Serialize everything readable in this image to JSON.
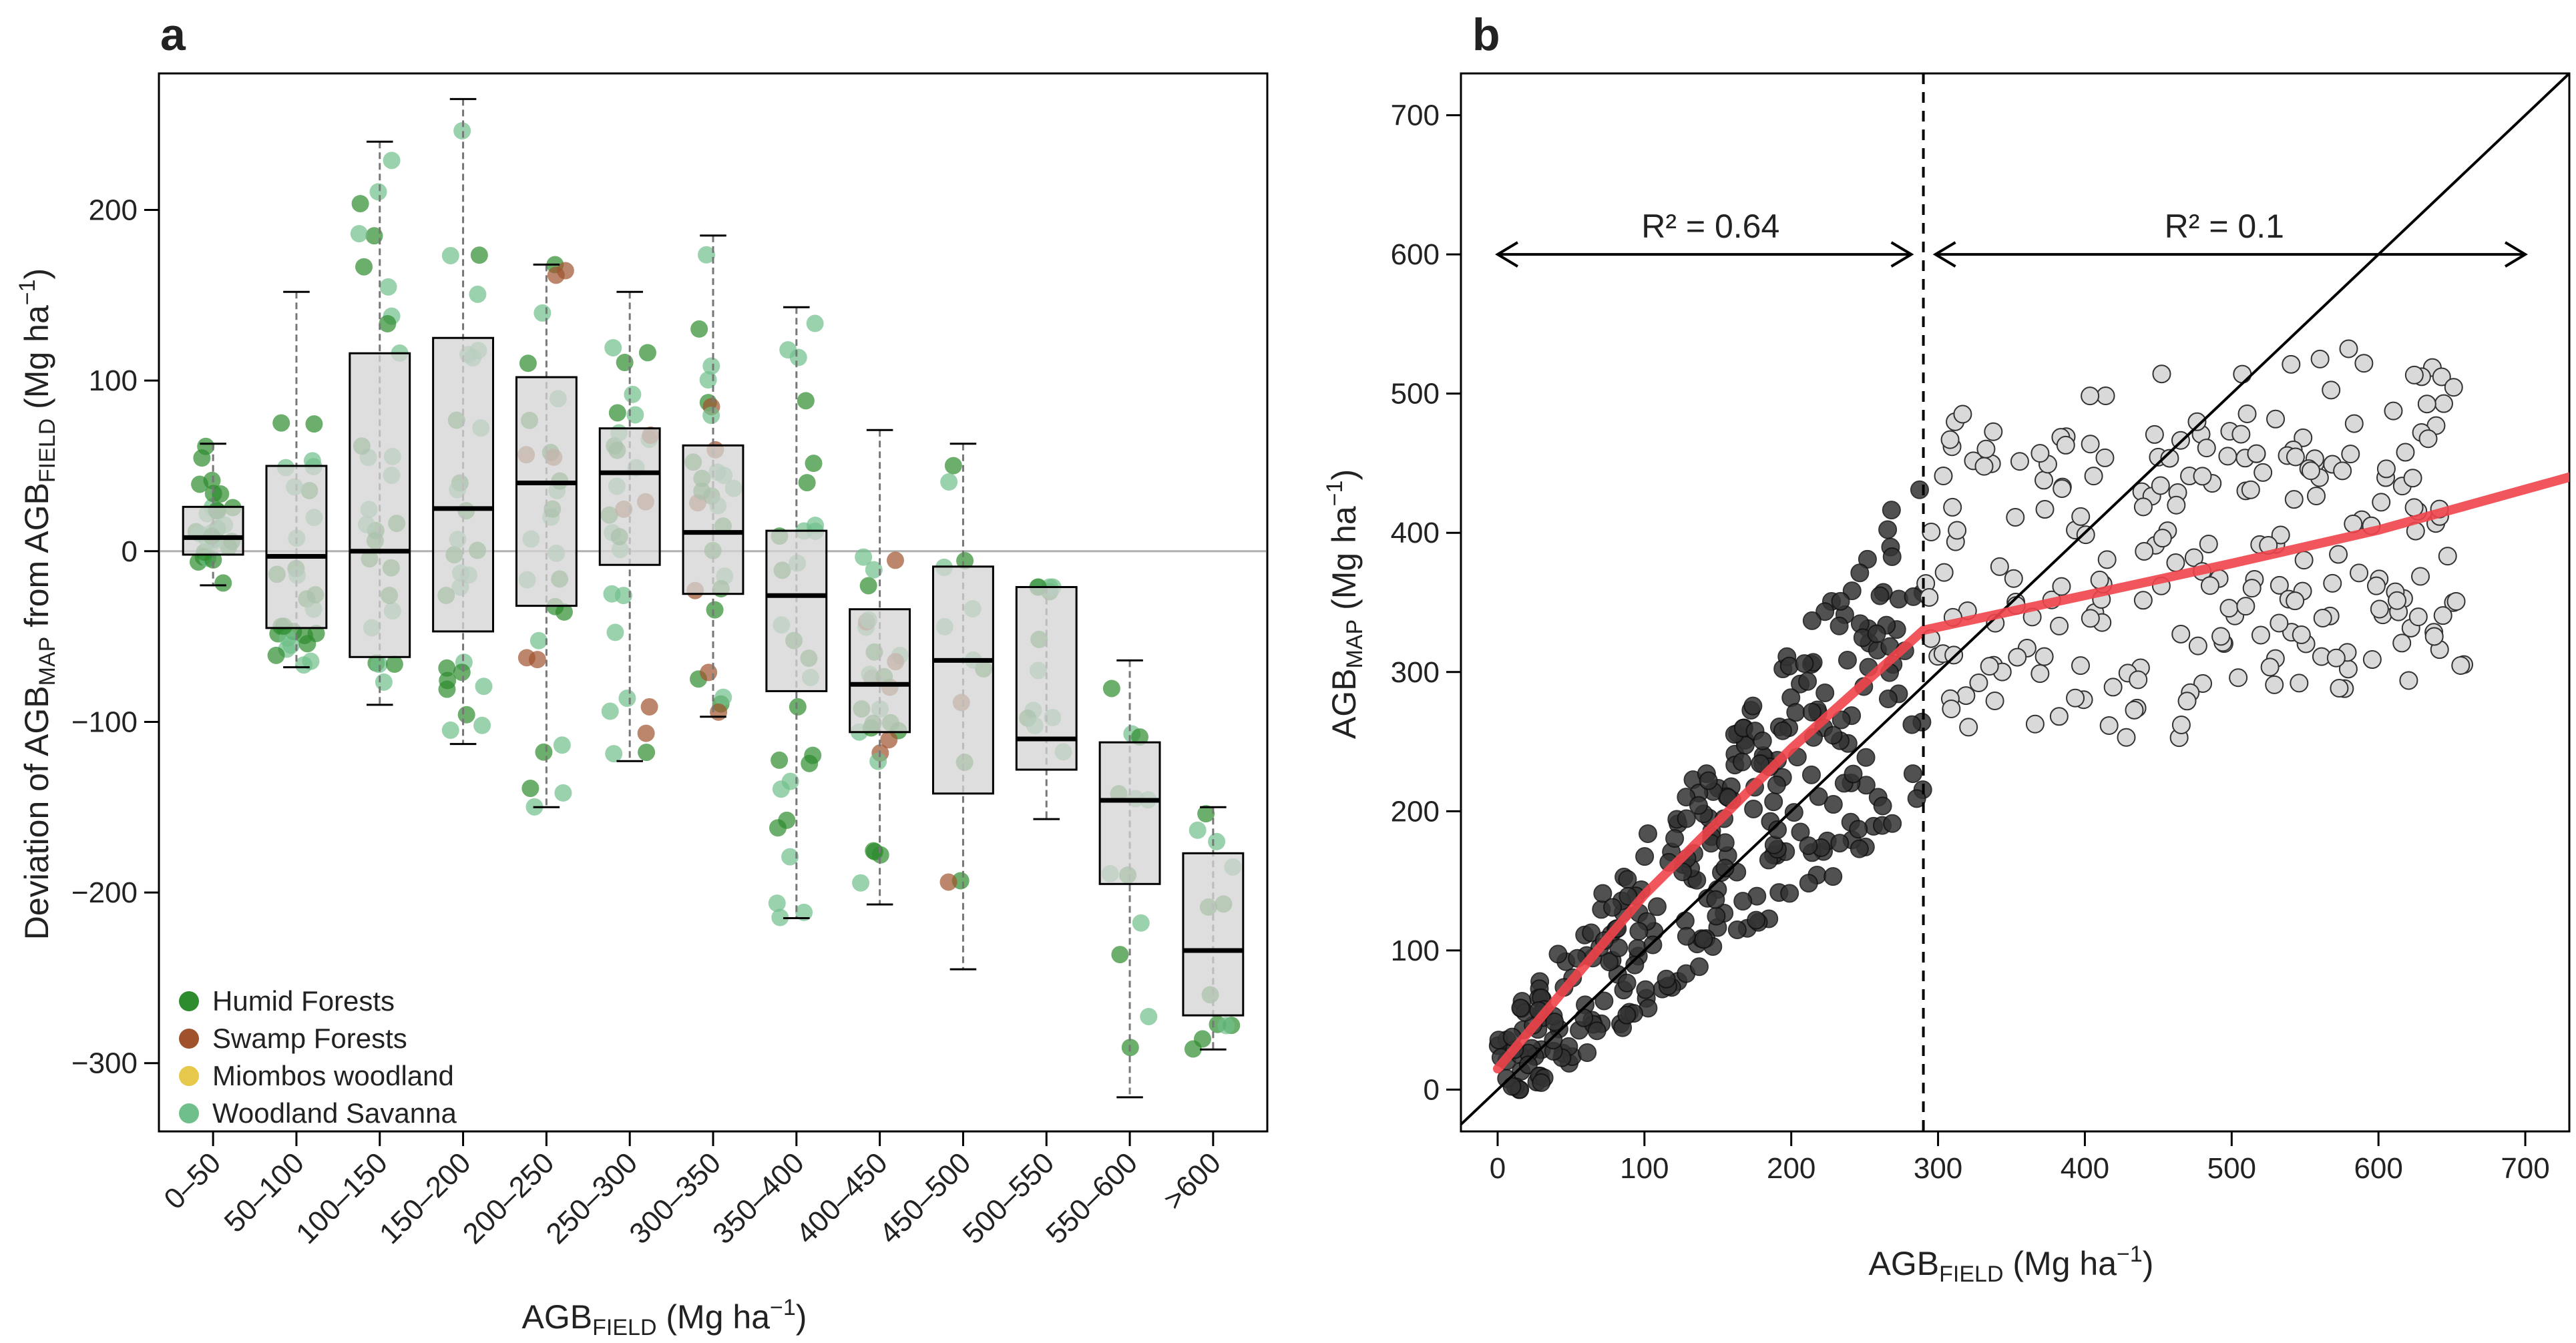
{
  "colors": {
    "humid": "#2e8b2e",
    "swamp": "#a0522d",
    "miombo": "#e6c84a",
    "savanna": "#6fbf8a",
    "box_fill": "#d3d3d3",
    "dark_points": "#333333",
    "light_points": "#d9d9d9",
    "fit_line": "#f0444a"
  },
  "chart_data": [
    {
      "panel": "a",
      "type": "box",
      "ylabel_prefix": "Deviation of AGB",
      "ylabel_sub1": "MAP",
      "ylabel_mid": " from AGB",
      "ylabel_sub2": "FIELD",
      "ylabel_unit": "  (Mg ha",
      "ylabel_exp": "−1",
      "ylabel_close": ")",
      "xlabel_main": "AGB",
      "xlabel_sub": "FIELD",
      "xlabel_unit": " (Mg ha",
      "xlabel_exp": "−1",
      "xlabel_close": ")",
      "ylim": [
        -340,
        280
      ],
      "yticks": [
        -300,
        -200,
        -100,
        0,
        100,
        200
      ],
      "ytick_labels": [
        "−300",
        "−200",
        "−100",
        "0",
        "100",
        "200"
      ],
      "categories": [
        "0–50",
        "50–100",
        "100–150",
        "150–200",
        "200–250",
        "250–300",
        "300–350",
        "350–400",
        "400–450",
        "450–500",
        "500–550",
        "550–600",
        ">600"
      ],
      "boxes": [
        {
          "min": -20,
          "q1": -2,
          "median": 8,
          "q3": 26,
          "max": 63
        },
        {
          "min": -68,
          "q1": -45,
          "median": -3,
          "q3": 50,
          "max": 152
        },
        {
          "min": -90,
          "q1": -62,
          "median": 0,
          "q3": 116,
          "max": 240
        },
        {
          "min": -113,
          "q1": -47,
          "median": 25,
          "q3": 125,
          "max": 265
        },
        {
          "min": -150,
          "q1": -32,
          "median": 40,
          "q3": 102,
          "max": 168
        },
        {
          "min": -123,
          "q1": -8,
          "median": 46,
          "q3": 72,
          "max": 152
        },
        {
          "min": -97,
          "q1": -25,
          "median": 11,
          "q3": 62,
          "max": 185
        },
        {
          "min": -215,
          "q1": -82,
          "median": -26,
          "q3": 12,
          "max": 143
        },
        {
          "min": -207,
          "q1": -106,
          "median": -78,
          "q3": -34,
          "max": 71
        },
        {
          "min": -245,
          "q1": -142,
          "median": -64,
          "q3": -9,
          "max": 63
        },
        {
          "min": -157,
          "q1": -128,
          "median": -110,
          "q3": -21,
          "max": -21
        },
        {
          "min": -320,
          "q1": -195,
          "median": -146,
          "q3": -112,
          "max": -64
        },
        {
          "min": -292,
          "q1": -272,
          "median": -234,
          "q3": -177,
          "max": -150
        }
      ],
      "legend": [
        {
          "label": "Humid Forests",
          "color_key": "humid"
        },
        {
          "label": "Swamp Forests",
          "color_key": "swamp"
        },
        {
          "label": "Miombos woodland",
          "color_key": "miombo"
        },
        {
          "label": "Woodland Savanna",
          "color_key": "savanna"
        }
      ]
    },
    {
      "panel": "b",
      "type": "scatter",
      "xlabel_main": "AGB",
      "xlabel_sub": "FIELD",
      "xlabel_unit": " (Mg ha",
      "xlabel_exp": "−1",
      "xlabel_close": ")",
      "ylabel_main": "AGB",
      "ylabel_sub": "MAP",
      "ylabel_unit": " (Mg ha",
      "ylabel_exp": "−1",
      "ylabel_close": ")",
      "xlim": [
        -25,
        730
      ],
      "ylim": [
        -30,
        730
      ],
      "xticks": [
        0,
        100,
        200,
        300,
        400,
        500,
        600,
        700
      ],
      "yticks": [
        0,
        100,
        200,
        300,
        400,
        500,
        600,
        700
      ],
      "breakpoint": 290,
      "r2_left": "R² = 0.64",
      "r2_right": "R² = 0.1",
      "fit_line": [
        [
          0,
          15
        ],
        [
          100,
          140
        ],
        [
          200,
          245
        ],
        [
          290,
          330
        ],
        [
          400,
          355
        ],
        [
          500,
          378
        ],
        [
          600,
          402
        ],
        [
          730,
          440
        ]
      ],
      "one_to_one": [
        [
          -25,
          -25
        ],
        [
          730,
          730
        ]
      ]
    }
  ]
}
